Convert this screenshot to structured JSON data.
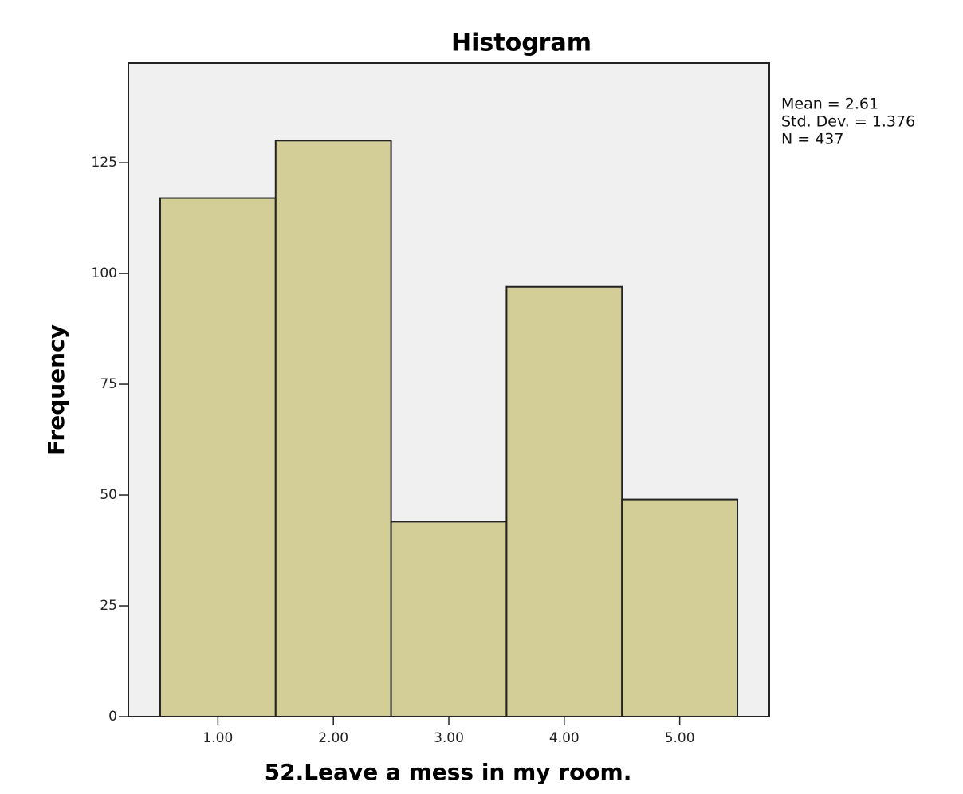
{
  "chart_data": {
    "type": "histogram",
    "title": "Histogram",
    "x_label": "52.Leave a mess in my room.",
    "y_label": "Frequency",
    "annotations": [
      "Mean = 2.61",
      "Std. Dev. = 1.376",
      "N = 437"
    ],
    "bins": [
      0.5,
      1.5,
      2.5,
      3.5,
      4.5,
      5.5
    ],
    "values": [
      117,
      130,
      44,
      97,
      49
    ],
    "color": "#d3ce98",
    "xlim": [
      0.224,
      5.776
    ],
    "ylim": [
      0,
      147.5
    ],
    "xticks": [
      {
        "value": 1,
        "label": "1.00"
      },
      {
        "value": 2,
        "label": "2.00"
      },
      {
        "value": 3,
        "label": "3.00"
      },
      {
        "value": 4,
        "label": "4.00"
      },
      {
        "value": 5,
        "label": "5.00"
      }
    ],
    "yticks": [
      0,
      25,
      50,
      75,
      100,
      125
    ]
  }
}
